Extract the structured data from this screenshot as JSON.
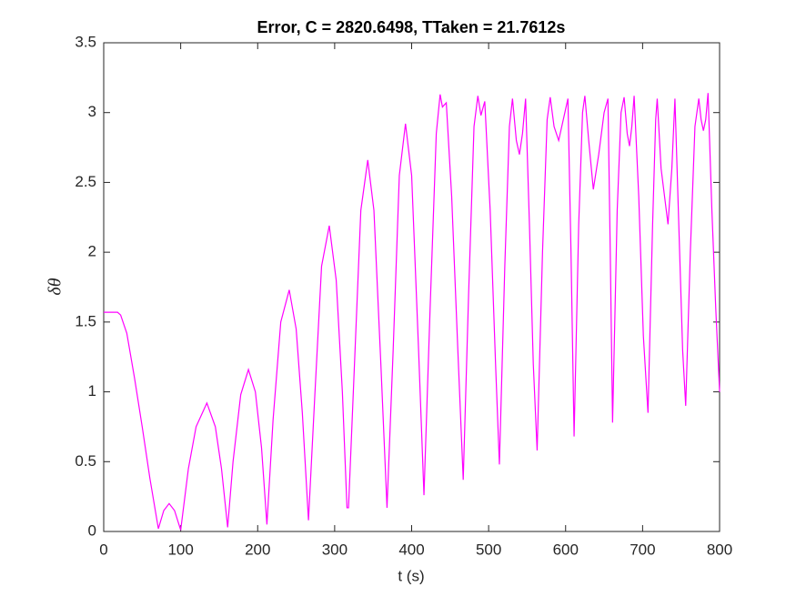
{
  "chart_data": {
    "type": "line",
    "title": "Error, C = 2820.6498, TTaken = 21.7612s",
    "xlabel": "t (s)",
    "ylabel": "δθ",
    "x": [
      0,
      18,
      22,
      30,
      40,
      50,
      60,
      71,
      78,
      85,
      92,
      100,
      110,
      120,
      134,
      145,
      153,
      161,
      168,
      178,
      188,
      197,
      205,
      212,
      220,
      230,
      241,
      250,
      258,
      266,
      274,
      283,
      293,
      302,
      310,
      316,
      318,
      325,
      334,
      343,
      351,
      360,
      368,
      376,
      384,
      392,
      400,
      409,
      416,
      424,
      432,
      437,
      440,
      445,
      452,
      460,
      467,
      474,
      481,
      486,
      490,
      495,
      502,
      509,
      514,
      521,
      527,
      531,
      536,
      540,
      544,
      548,
      553,
      558,
      563,
      570,
      576,
      580,
      585,
      591,
      597,
      603,
      607,
      611,
      617,
      622,
      625,
      630,
      636,
      643,
      650,
      655,
      658,
      661,
      667,
      672,
      676,
      680,
      683,
      686,
      689,
      695,
      701,
      707,
      713,
      717,
      719,
      724,
      733,
      738,
      742,
      747,
      752,
      756,
      762,
      768,
      773,
      776,
      779,
      782,
      785,
      790,
      795,
      800
    ],
    "series": [
      {
        "name": "δθ",
        "color": "#ff00ff",
        "values": [
          1.57,
          1.57,
          1.55,
          1.42,
          1.1,
          0.75,
          0.38,
          0.02,
          0.15,
          0.2,
          0.15,
          0.01,
          0.45,
          0.75,
          0.92,
          0.75,
          0.45,
          0.03,
          0.5,
          0.98,
          1.16,
          1.0,
          0.6,
          0.05,
          0.8,
          1.5,
          1.73,
          1.45,
          0.85,
          0.08,
          0.95,
          1.9,
          2.19,
          1.8,
          1.0,
          0.17,
          0.17,
          1.1,
          2.3,
          2.66,
          2.3,
          1.2,
          0.17,
          1.3,
          2.55,
          2.92,
          2.55,
          1.3,
          0.26,
          1.6,
          2.85,
          3.13,
          3.04,
          3.07,
          2.4,
          1.3,
          0.37,
          1.7,
          2.9,
          3.12,
          2.98,
          3.08,
          2.3,
          1.2,
          0.48,
          1.9,
          2.9,
          3.1,
          2.8,
          2.7,
          2.85,
          3.1,
          2.2,
          1.2,
          0.58,
          2.0,
          2.95,
          3.11,
          2.9,
          2.8,
          2.95,
          3.1,
          2.0,
          0.68,
          2.2,
          3.0,
          3.12,
          2.8,
          2.45,
          2.7,
          3.0,
          3.1,
          2.0,
          0.78,
          2.3,
          3.0,
          3.11,
          2.85,
          2.76,
          2.9,
          3.12,
          2.4,
          1.4,
          0.85,
          2.2,
          2.95,
          3.1,
          2.6,
          2.2,
          2.6,
          3.1,
          2.2,
          1.3,
          0.9,
          2.0,
          2.9,
          3.1,
          2.95,
          2.87,
          2.95,
          3.14,
          2.3,
          1.6,
          1.0
        ]
      }
    ],
    "xlim": [
      0,
      800
    ],
    "xticks": [
      0,
      100,
      200,
      300,
      400,
      500,
      600,
      700,
      800
    ],
    "ylim": [
      0,
      3.5
    ],
    "yticks": [
      0,
      0.5,
      1,
      1.5,
      2,
      2.5,
      3,
      3.5
    ],
    "grid": false
  }
}
